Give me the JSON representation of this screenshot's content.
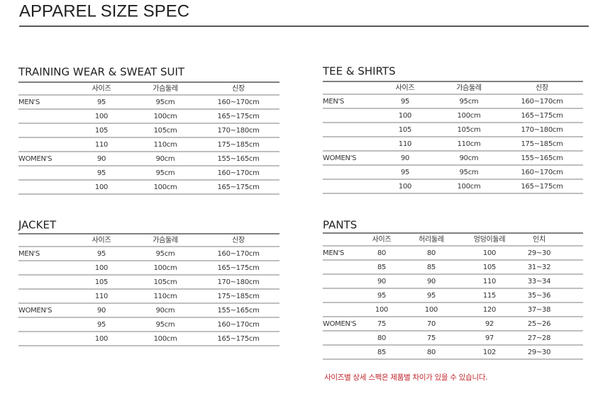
{
  "header": {
    "title": "APPAREL SIZE SPEC"
  },
  "sections": [
    {
      "title": "TRAINING WEAR & SWEAT SUIT",
      "columns": [
        "사이즈",
        "가슴둘레",
        "신장"
      ],
      "groups": [
        {
          "label": "MEN'S",
          "rows": [
            [
              "95",
              "95cm",
              "160~170cm"
            ],
            [
              "100",
              "100cm",
              "165~175cm"
            ],
            [
              "105",
              "105cm",
              "170~180cm"
            ],
            [
              "110",
              "110cm",
              "175~185cm"
            ]
          ]
        },
        {
          "label": "WOMEN'S",
          "rows": [
            [
              "90",
              "90cm",
              "155~165cm"
            ],
            [
              "95",
              "95cm",
              "160~170cm"
            ],
            [
              "100",
              "100cm",
              "165~175cm"
            ]
          ]
        }
      ]
    },
    {
      "title": "TEE & SHIRTS",
      "columns": [
        "사이즈",
        "가슴둘레",
        "신장"
      ],
      "groups": [
        {
          "label": "MEN'S",
          "rows": [
            [
              "95",
              "95cm",
              "160~170cm"
            ],
            [
              "100",
              "100cm",
              "165~175cm"
            ],
            [
              "105",
              "105cm",
              "170~180cm"
            ],
            [
              "110",
              "110cm",
              "175~185cm"
            ]
          ]
        },
        {
          "label": "WOMEN'S",
          "rows": [
            [
              "90",
              "90cm",
              "155~165cm"
            ],
            [
              "95",
              "95cm",
              "160~170cm"
            ],
            [
              "100",
              "100cm",
              "165~175cm"
            ]
          ]
        }
      ]
    },
    {
      "title": "JACKET",
      "columns": [
        "사이즈",
        "가슴둘레",
        "신장"
      ],
      "groups": [
        {
          "label": "MEN'S",
          "rows": [
            [
              "95",
              "95cm",
              "160~170cm"
            ],
            [
              "100",
              "100cm",
              "165~175cm"
            ],
            [
              "105",
              "105cm",
              "170~180cm"
            ],
            [
              "110",
              "110cm",
              "175~185cm"
            ]
          ]
        },
        {
          "label": "WOMEN'S",
          "rows": [
            [
              "90",
              "90cm",
              "155~165cm"
            ],
            [
              "95",
              "95cm",
              "160~170cm"
            ],
            [
              "100",
              "100cm",
              "165~175cm"
            ]
          ]
        }
      ]
    },
    {
      "title": "PANTS",
      "columns": [
        "사이즈",
        "허리둘레",
        "엉덩이둘레",
        "인치"
      ],
      "groups": [
        {
          "label": "MEN'S",
          "rows": [
            [
              "80",
              "80",
              "100",
              "29~30"
            ],
            [
              "85",
              "85",
              "105",
              "31~32"
            ],
            [
              "90",
              "90",
              "110",
              "33~34"
            ],
            [
              "95",
              "95",
              "115",
              "35~36"
            ],
            [
              "100",
              "100",
              "120",
              "37~38"
            ]
          ]
        },
        {
          "label": "WOMEN'S",
          "rows": [
            [
              "75",
              "70",
              "92",
              "25~26"
            ],
            [
              "80",
              "75",
              "97",
              "27~28"
            ],
            [
              "85",
              "80",
              "102",
              "29~30"
            ]
          ]
        }
      ]
    }
  ],
  "note": "사이즈별 상세 스펙은 제품별 차이가 있을 수 있습니다."
}
